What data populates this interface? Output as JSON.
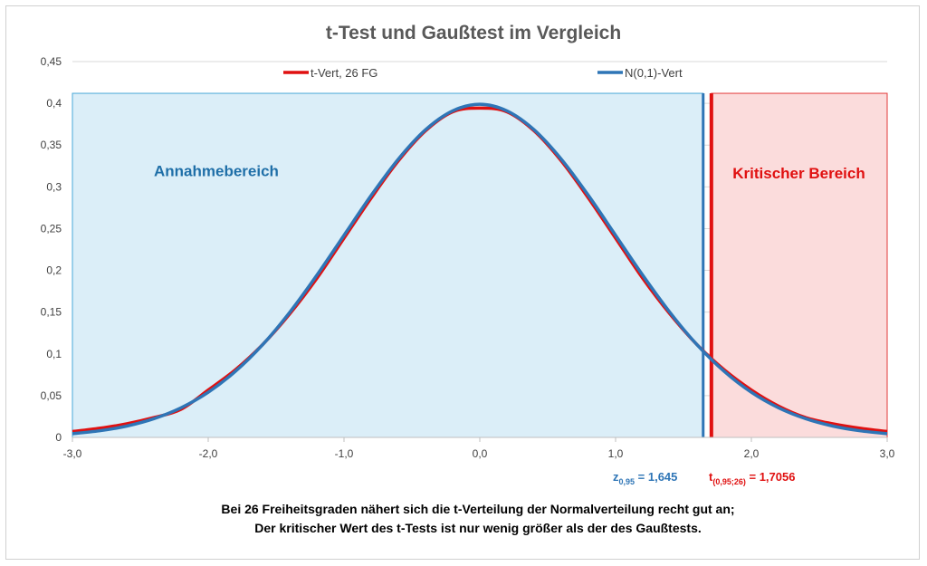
{
  "chart_data": {
    "type": "line",
    "title": "t-Test und Gaußtest im Vergleich",
    "xlim": [
      -3.0,
      3.0
    ],
    "ylim": [
      0,
      0.45
    ],
    "x_ticks": [
      "-3,0",
      "-2,0",
      "-1,0",
      "0,0",
      "1,0",
      "2,0",
      "3,0"
    ],
    "x_tick_values": [
      -3,
      -2,
      -1,
      0,
      1,
      2,
      3
    ],
    "y_ticks": [
      "0",
      "0,05",
      "0,1",
      "0,15",
      "0,2",
      "0,25",
      "0,3",
      "0,35",
      "0,4",
      "0,45"
    ],
    "y_tick_values": [
      0,
      0.05,
      0.1,
      0.15,
      0.2,
      0.25,
      0.3,
      0.35,
      0.4,
      0.45
    ],
    "grid": "horizontal",
    "legend_position": "top",
    "x": [
      -3.0,
      -2.8,
      -2.6,
      -2.4,
      -2.2,
      -2.0,
      -1.8,
      -1.6,
      -1.4,
      -1.2,
      -1.0,
      -0.8,
      -0.6,
      -0.4,
      -0.2,
      0.0,
      0.2,
      0.4,
      0.6,
      0.8,
      1.0,
      1.2,
      1.4,
      1.6,
      1.8,
      2.0,
      2.2,
      2.4,
      2.6,
      2.8,
      3.0
    ],
    "series": [
      {
        "name": "t-Vert, 26 FG",
        "color": "#e01010",
        "values": [
          0.0071,
          0.0109,
          0.0163,
          0.0238,
          0.0337,
          0.0567,
          0.0809,
          0.111,
          0.1478,
          0.1904,
          0.2386,
          0.2866,
          0.3311,
          0.367,
          0.3898,
          0.3943,
          0.3898,
          0.367,
          0.3311,
          0.2866,
          0.2386,
          0.1904,
          0.1478,
          0.111,
          0.0809,
          0.0567,
          0.0375,
          0.0238,
          0.0163,
          0.0109,
          0.0071
        ]
      },
      {
        "name": "N(0,1)-Vert",
        "color": "#2e75b6",
        "values": [
          0.0044,
          0.0079,
          0.0136,
          0.0224,
          0.0355,
          0.054,
          0.079,
          0.1109,
          0.1497,
          0.1942,
          0.242,
          0.2897,
          0.3332,
          0.3683,
          0.391,
          0.3989,
          0.391,
          0.3683,
          0.3332,
          0.2897,
          0.242,
          0.1942,
          0.1497,
          0.1109,
          0.079,
          0.054,
          0.0355,
          0.0224,
          0.0136,
          0.0079,
          0.0044
        ]
      }
    ],
    "regions": {
      "acceptance": {
        "label": "Annahmebereich",
        "x_from": -3.0,
        "x_to": 1.645,
        "fill": "#dbeef8",
        "stroke": "#4aa8d8",
        "label_color": "#1f6fa8"
      },
      "critical": {
        "label": "Kritischer Bereich",
        "x_from": 1.7056,
        "x_to": 3.0,
        "fill": "#fbdcdc",
        "stroke": "#e23a3a",
        "label_color": "#e01010"
      }
    },
    "critical_values": [
      {
        "name": "z",
        "subscript": "0,95",
        "value_text": "= 1,645",
        "x": 1.645,
        "color": "#2e75b6"
      },
      {
        "name": "t",
        "subscript": "(0,95;26)",
        "value_text": "= 1,7056",
        "x": 1.7056,
        "color": "#e01010"
      }
    ],
    "caption_lines": [
      "Bei 26 Freiheitsgraden nähert sich die  t-Verteilung der Normalverteilung recht gut an;",
      "Der kritischer Wert des t-Tests ist nur wenig größer als der des Gaußtests."
    ]
  }
}
